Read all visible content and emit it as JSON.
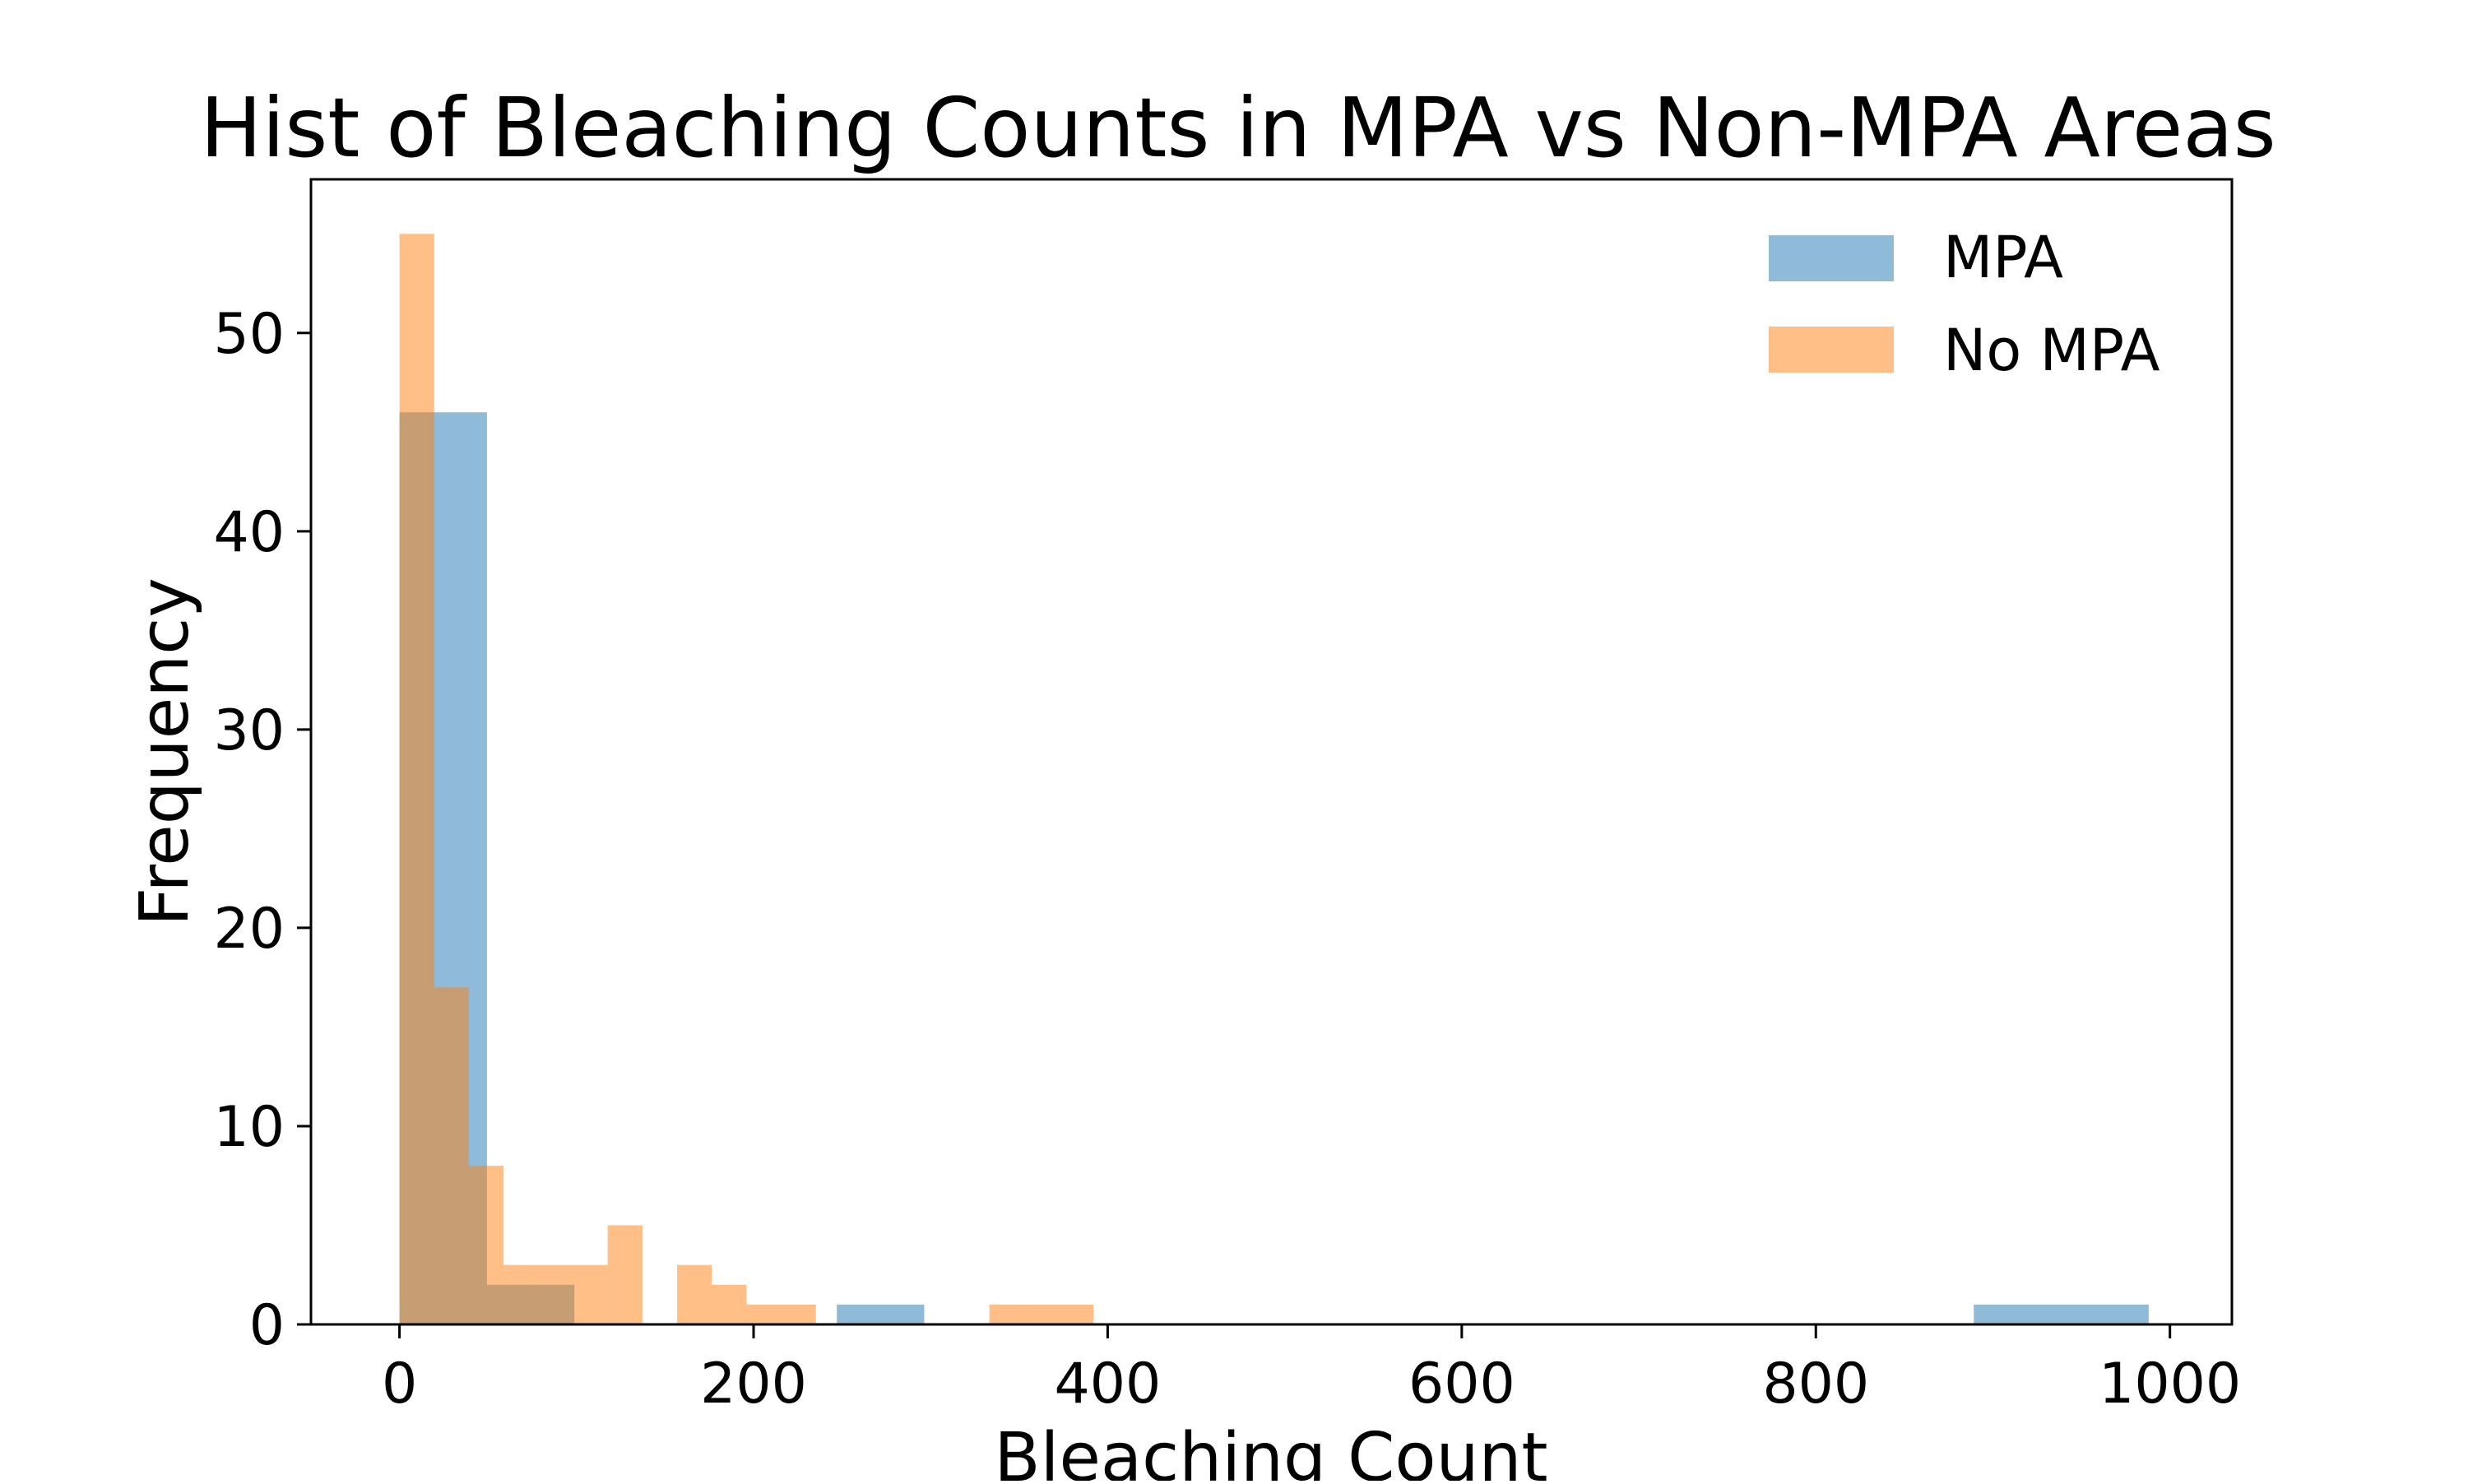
{
  "chart_data": {
    "type": "bar",
    "title": "Hist of Bleaching Counts in MPA vs Non-MPA Areas",
    "xlabel": "Bleaching Count",
    "ylabel": "Frequency",
    "xlim": [
      -50,
      1035
    ],
    "ylim": [
      0,
      57.75
    ],
    "xticks": [
      0,
      200,
      400,
      600,
      800,
      1000
    ],
    "yticks": [
      0,
      10,
      20,
      30,
      40,
      50
    ],
    "grid": false,
    "legend_position": "top-right",
    "series": [
      {
        "name": "MPA",
        "color": "#1f77b4",
        "opacity": 0.5,
        "bin_edges": [
          0,
          49.4,
          98.8,
          148.2,
          197.6,
          247,
          296.4,
          345.8,
          395.2,
          444.6,
          494,
          543.4,
          592.8,
          642.2,
          691.6,
          741,
          790.4,
          839.8,
          889.2,
          938.6,
          988
        ],
        "counts": [
          46,
          2,
          0,
          0,
          0,
          1,
          0,
          0,
          0,
          0,
          0,
          0,
          0,
          0,
          0,
          0,
          0,
          0,
          1,
          1
        ]
      },
      {
        "name": "No MPA",
        "color": "#ff7f0e",
        "opacity": 0.5,
        "bin_edges": [
          0,
          19.6,
          39.2,
          58.8,
          78.4,
          98,
          117.6,
          137.2,
          156.8,
          176.4,
          196,
          215.6,
          235.2,
          254.8,
          274.4,
          294,
          313.6,
          333.2,
          352.8,
          372.4,
          392
        ],
        "counts": [
          55,
          17,
          8,
          3,
          3,
          3,
          5,
          0,
          3,
          2,
          1,
          1,
          0,
          0,
          0,
          0,
          0,
          1,
          1,
          1
        ]
      }
    ]
  }
}
